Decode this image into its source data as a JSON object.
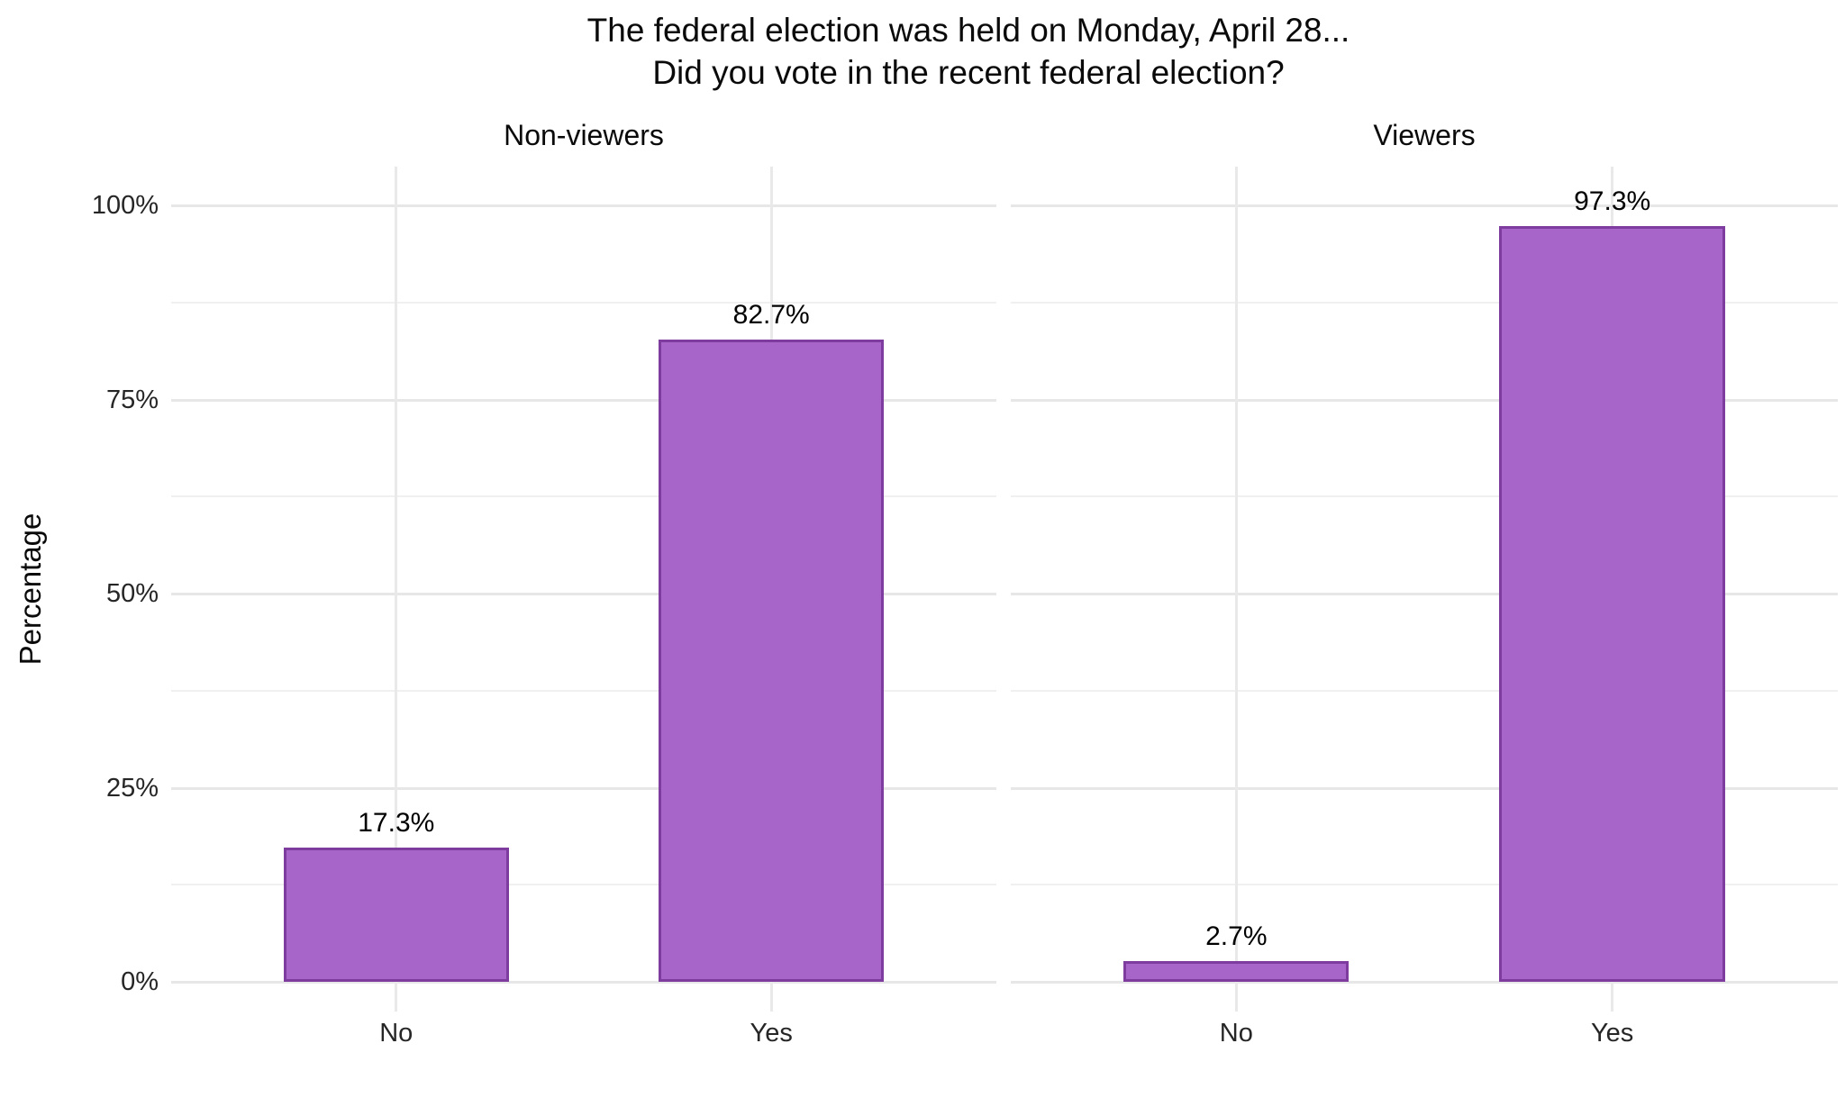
{
  "chart_data": {
    "type": "bar",
    "title_lines": [
      "The federal election was held on Monday, April 28...",
      "Did you vote in the recent federal election?"
    ],
    "ylabel": "Percentage",
    "xlabel": "",
    "categories": [
      "No",
      "Yes"
    ],
    "facets": [
      {
        "label": "Non-viewers",
        "values": [
          17.3,
          82.7
        ],
        "value_labels": [
          "17.3%",
          "82.7%"
        ]
      },
      {
        "label": "Viewers",
        "values": [
          2.7,
          97.3
        ],
        "value_labels": [
          "2.7%",
          "97.3%"
        ]
      }
    ],
    "yticks": {
      "values": [
        0,
        25,
        50,
        75,
        100
      ],
      "labels": [
        "0%",
        "25%",
        "50%",
        "75%",
        "100%"
      ]
    },
    "yminor": [
      12.5,
      37.5,
      62.5,
      87.5
    ],
    "ylim": [
      0,
      100
    ],
    "grid": true,
    "legend": "none",
    "colors": {
      "bar_fill": "#a764c9",
      "bar_stroke": "#7d3c9e",
      "grid_major": "#e7e7e7",
      "grid_minor": "#f0f0f0",
      "grid_vertical": "#e9e9e9",
      "text": "#0a0a0a",
      "axis_text": "#262626",
      "background": "#ffffff"
    }
  }
}
